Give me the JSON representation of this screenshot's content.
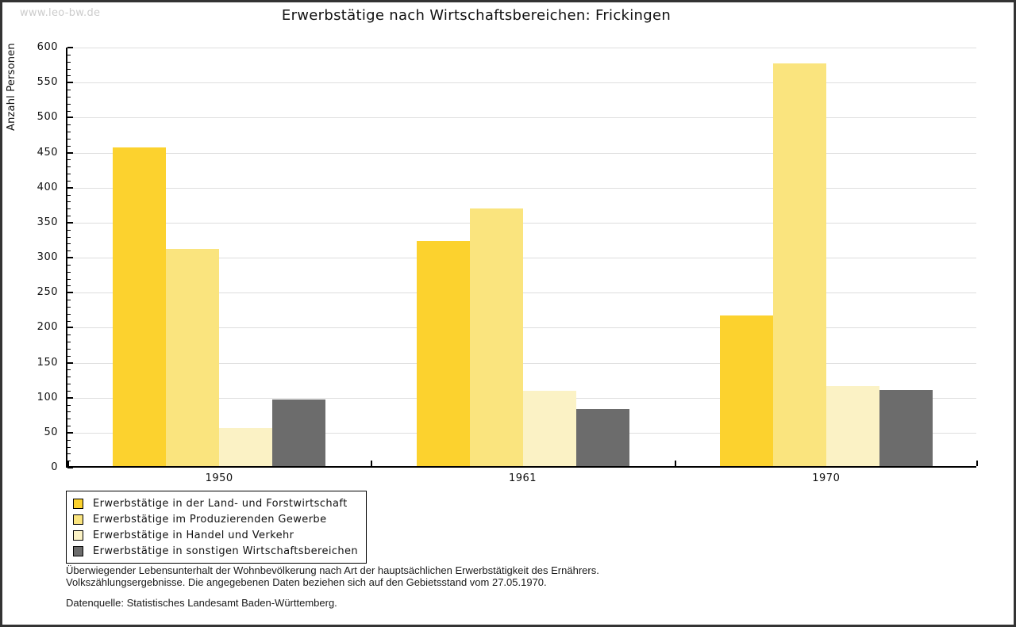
{
  "watermark": "www.leo-bw.de",
  "title": "Erwerbstätige nach Wirtschaftsbereichen: Frickingen",
  "chart_data": {
    "type": "bar",
    "title": "Erwerbstätige nach Wirtschaftsbereichen: Frickingen",
    "xlabel": "",
    "ylabel": "Anzahl Personen",
    "ylim": [
      0,
      600
    ],
    "ytick_step": 50,
    "minor_tick_step": 10,
    "grid": true,
    "legend_position": "bottom-left",
    "categories": [
      "1950",
      "1961",
      "1970"
    ],
    "series": [
      {
        "name": "Erwerbstätige in der Land- und Forstwirtschaft",
        "color": "#fcd22e",
        "values": [
          455,
          322,
          215
        ]
      },
      {
        "name": "Erwerbstätige im Produzierenden Gewerbe",
        "color": "#fae47e",
        "values": [
          310,
          368,
          575
        ]
      },
      {
        "name": "Erwerbstätige in Handel und Verkehr",
        "color": "#fbf2c5",
        "values": [
          54,
          107,
          114
        ]
      },
      {
        "name": "Erwerbstätige in sonstigen Wirtschaftsbereichen",
        "color": "#6c6c6c",
        "values": [
          95,
          82,
          109
        ]
      }
    ]
  },
  "footnote": {
    "line1": "Überwiegender Lebensunterhalt der Wohnbevölkerung nach Art der hauptsächlichen Erwerbstätigkeit des Ernährers.",
    "line2": "Volkszählungsergebnisse. Die angegebenen Daten beziehen sich auf den Gebietsstand vom 27.05.1970.",
    "source": "Datenquelle: Statistisches Landesamt Baden-Württemberg."
  }
}
